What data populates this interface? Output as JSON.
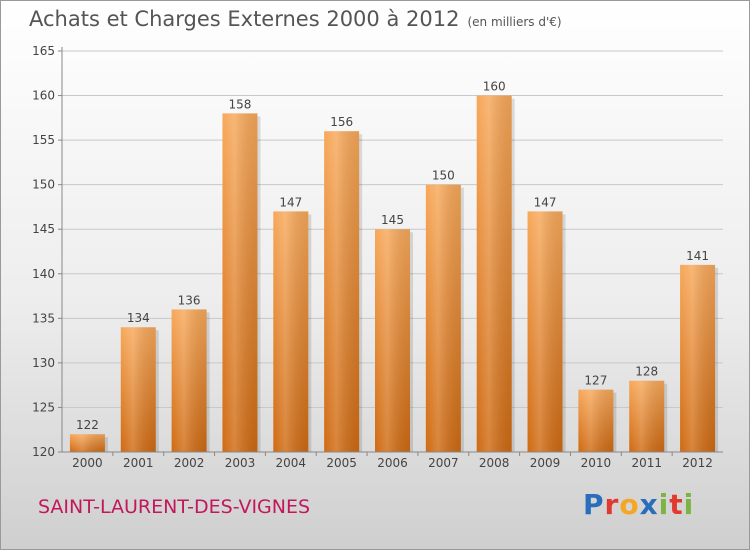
{
  "header": {
    "title": "Achats et Charges Externes 2000 à 2012",
    "subtitle": "(en milliers d'€)"
  },
  "footer": {
    "commune": "SAINT-LAURENT-DES-VIGNES"
  },
  "brand": {
    "letters": [
      "P",
      "r",
      "o",
      "x",
      "i",
      "t",
      "i"
    ],
    "colors": [
      "#2a6ebb",
      "#e03a2f",
      "#f5a623",
      "#2a6ebb",
      "#7cb342",
      "#e03a2f",
      "#7cb342"
    ]
  },
  "chart_data": {
    "type": "bar",
    "title": "Achats et Charges Externes 2000 à 2012",
    "subtitle": "(en milliers d'€)",
    "categories": [
      "2000",
      "2001",
      "2002",
      "2003",
      "2004",
      "2005",
      "2006",
      "2007",
      "2008",
      "2009",
      "2010",
      "2011",
      "2012"
    ],
    "values": [
      122,
      134,
      136,
      158,
      147,
      156,
      145,
      150,
      160,
      147,
      127,
      128,
      141
    ],
    "ylim": [
      120,
      165
    ],
    "yticks": [
      120,
      125,
      130,
      135,
      140,
      145,
      150,
      155,
      160,
      165
    ],
    "grid": true,
    "legend": "none",
    "bar_color": "#f0922e",
    "grid_color": "#c8c8c8",
    "axis_color": "#888888"
  }
}
